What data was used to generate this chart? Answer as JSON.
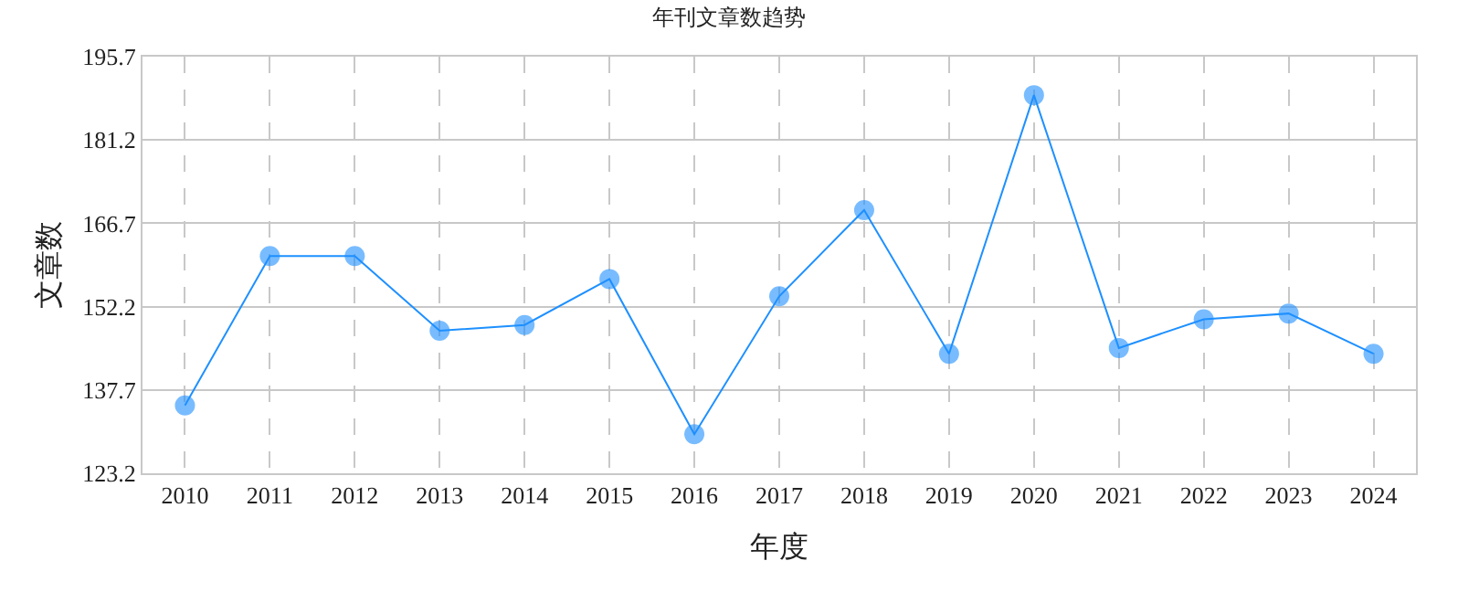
{
  "chart_data": {
    "type": "line",
    "title": "年刊文章数趋势",
    "xlabel": "年度",
    "ylabel": "文章数",
    "categories": [
      "2010",
      "2011",
      "2012",
      "2013",
      "2014",
      "2015",
      "2016",
      "2017",
      "2018",
      "2019",
      "2020",
      "2021",
      "2022",
      "2023",
      "2024"
    ],
    "series": [
      {
        "color": "#1e90ff",
        "values": [
          135,
          161,
          161,
          148,
          149,
          157,
          130,
          154,
          169,
          144,
          189,
          145,
          150,
          151,
          144
        ]
      }
    ],
    "ylim": [
      123.2,
      195.7
    ],
    "yticks": [
      123.2,
      137.7,
      152.2,
      166.7,
      181.2,
      195.7
    ],
    "grid": true,
    "marker": "circle",
    "line_style": "solid"
  }
}
